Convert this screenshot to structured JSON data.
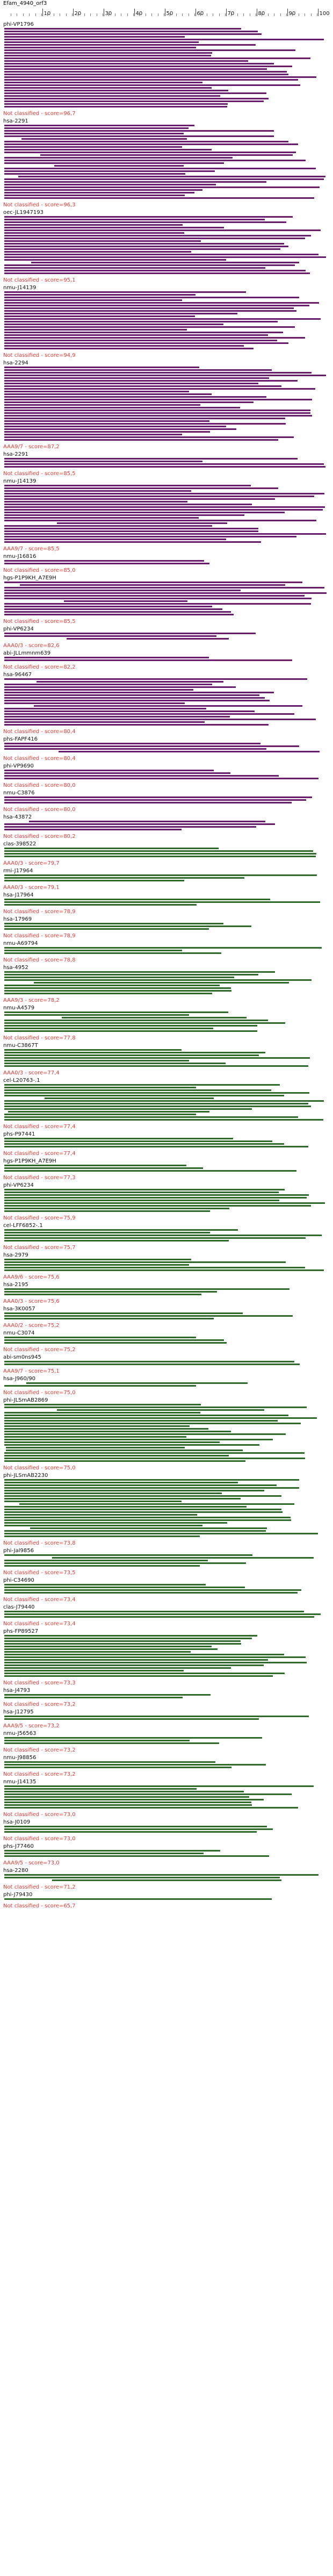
{
  "header": {
    "title": "Efam_4940_orf3",
    "axis_ticks": [
      "10",
      "20",
      "30",
      "40",
      "50",
      "60",
      "70",
      "80",
      "90",
      "100"
    ]
  },
  "colors": {
    "purple": "#6a1b6d",
    "green": "#2e6b2a",
    "score_text": "#e53935"
  },
  "groups": [
    {
      "name": "phi-VP1796",
      "rows": 30,
      "color": "purple",
      "score": "Not classified - score=96,7"
    },
    {
      "name": "hsa-2291",
      "rows": 28,
      "color": "purple",
      "score": "Not classified - score=96,3"
    },
    {
      "name": "oec-JL1947193",
      "rows": 22,
      "color": "purple",
      "score": "Not classified - score=95,1"
    },
    {
      "name": "nmu-J14139",
      "rows": 22,
      "color": "purple",
      "score": "Not classified - score=94,9"
    },
    {
      "name": "hsa-2294",
      "rows": 28,
      "color": "purple",
      "score": "AAA9/7 - score=87,2"
    },
    {
      "name": "hsa-2291",
      "rows": 4,
      "color": "purple",
      "score": "Not classified - score=85,5"
    },
    {
      "name": "nmu-J14139",
      "rows": 22,
      "color": "purple",
      "score": "AAA9/7 - score=85,5"
    },
    {
      "name": "nmu-J16816",
      "rows": 2,
      "color": "purple",
      "score": "Not classified - score=85,0"
    },
    {
      "name": "hgs-P1P9KH_A7E9H",
      "rows": 13,
      "color": "purple",
      "score": "Not classified - score=85,5"
    },
    {
      "name": "phi-VP6234",
      "rows": 3,
      "color": "purple",
      "score": "AAA0/3 - score=82,6"
    },
    {
      "name": "abi-JLLmmnm639",
      "rows": 2,
      "color": "purple",
      "score": "Not classified - score=82,2"
    },
    {
      "name": "hsa-96467",
      "rows": 18,
      "color": "purple",
      "score": "Not classified - score=80,4"
    },
    {
      "name": "phs-FAPF416",
      "rows": 4,
      "color": "purple",
      "score": "Not classified - score=80,4"
    },
    {
      "name": "phi-VP9690",
      "rows": 4,
      "color": "purple",
      "score": "Not classified - score=80,0"
    },
    {
      "name": "nmu-C3876",
      "rows": 3,
      "color": "purple",
      "score": "Not classified - score=80,0"
    },
    {
      "name": "hsa-43872",
      "rows": 4,
      "color": "purple",
      "score": "Not classified - score=80,2"
    },
    {
      "name": "clas-398522",
      "rows": 4,
      "color": "green",
      "score": "AAA0/3 - score=79,7"
    },
    {
      "name": "rmi-J17964",
      "rows": 3,
      "color": "green",
      "score": "AAA0/3 - score=79,1"
    },
    {
      "name": "hsa-J17964",
      "rows": 3,
      "color": "green",
      "score": "Not classified - score=78,9"
    },
    {
      "name": "hsa-17969",
      "rows": 3,
      "color": "green",
      "score": "Not classified - score=78,9"
    },
    {
      "name": "nmu-A69794",
      "rows": 3,
      "color": "green",
      "score": "Not classified - score=78,8"
    },
    {
      "name": "hsa-4952",
      "rows": 9,
      "color": "green",
      "score": "AAA9/3 - score=78,2"
    },
    {
      "name": "nmu-A4579",
      "rows": 8,
      "color": "green",
      "score": "Not classified - score=77,8"
    },
    {
      "name": "nmu-C3867T",
      "rows": 7,
      "color": "green",
      "score": "AAA0/3 - score=77,4"
    },
    {
      "name": "cel-L20763-.1",
      "rows": 14,
      "color": "green",
      "score": "Not classified - score=77,4"
    },
    {
      "name": "phs-P97441",
      "rows": 4,
      "color": "green",
      "score": "Not classified - score=77,4"
    },
    {
      "name": "hgs-P1P9KH_A7E9H",
      "rows": 3,
      "color": "green",
      "score": "Not classified - score=77,3"
    },
    {
      "name": "phi-VP6234",
      "rows": 9,
      "color": "green",
      "score": "Not classified - score=75,9"
    },
    {
      "name": "cel-LFF6852-.1",
      "rows": 5,
      "color": "green",
      "score": "Not classified - score=75,7"
    },
    {
      "name": "hsa-2979",
      "rows": 5,
      "color": "green",
      "score": "AAA9/6 - score=75,6"
    },
    {
      "name": "hsa-2195",
      "rows": 3,
      "color": "green",
      "score": "AAA0/3 - score=75,6"
    },
    {
      "name": "hsa-3K0057",
      "rows": 3,
      "color": "green",
      "score": "AAA0/2 - score=75,2"
    },
    {
      "name": "nmu-C3074",
      "rows": 3,
      "color": "green",
      "score": "Not classified - score=75,2"
    },
    {
      "name": "abi-sm0ns945",
      "rows": 2,
      "color": "green",
      "score": "AAA9/7 - score=75,1"
    },
    {
      "name": "hsa-J960/90",
      "rows": 2,
      "color": "green",
      "score": "Not classified - score=75,0"
    },
    {
      "name": "phi-JLSmAB2869",
      "rows": 22,
      "color": "green",
      "score": "Not classified - score=75,0"
    },
    {
      "name": "phi-JLSmAB2230",
      "rows": 22,
      "color": "green",
      "score": "Not classified - score=73,8"
    },
    {
      "name": "phi-Jal9856",
      "rows": 5,
      "color": "green",
      "score": "Not classified - score=73,5"
    },
    {
      "name": "phi-C34690",
      "rows": 4,
      "color": "green",
      "score": "Not classified - score=73,4"
    },
    {
      "name": "clas-J79440",
      "rows": 3,
      "color": "green",
      "score": "Not classified - score=73,4"
    },
    {
      "name": "phs-FP89527",
      "rows": 16,
      "color": "green",
      "score": "Not classified - score=73,3"
    },
    {
      "name": "hsa-J4793",
      "rows": 2,
      "color": "green",
      "score": "Not classified - score=73,2"
    },
    {
      "name": "hsa-J12795",
      "rows": 2,
      "color": "green",
      "score": "AAA9/5 - score=73,2"
    },
    {
      "name": "nmu-J56563",
      "rows": 3,
      "color": "green",
      "score": "Not classified - score=73,2"
    },
    {
      "name": "nmu-J98856",
      "rows": 3,
      "color": "green",
      "score": "Not classified - score=73,2"
    },
    {
      "name": "nmu-J14135",
      "rows": 9,
      "color": "green",
      "score": "Not classified - score=73,0"
    },
    {
      "name": "hsa-J0109",
      "rows": 3,
      "color": "green",
      "score": "Not classified - score=73,0"
    },
    {
      "name": "phs-J77460",
      "rows": 3,
      "color": "green",
      "score": "AAA9/5 - score=73,0"
    },
    {
      "name": "hsa-2280",
      "rows": 3,
      "color": "green",
      "score": "Not classified - score=71,2"
    },
    {
      "name": "phi-J79430",
      "rows": 1,
      "color": "green",
      "score": "Not classified - score=65,7"
    }
  ]
}
